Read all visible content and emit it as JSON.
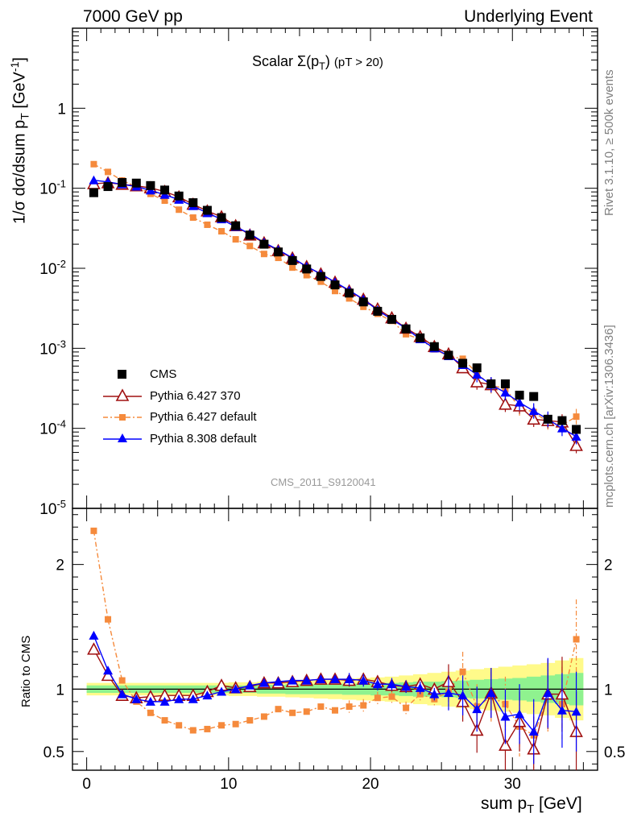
{
  "header": {
    "left": "7000 GeV pp",
    "right": "Underlying Event"
  },
  "side_text": {
    "rivet": "Rivet 3.1.10, ≥ 500k events",
    "url": "mcplots.cern.ch [arXiv:1306.3436]"
  },
  "watermark": "CMS_2011_S9120041",
  "colors": {
    "cms": "#000000",
    "py6_370": "#a01010",
    "py6_default": "#f58a3c",
    "py8": "#0000ff",
    "band_outer": "#fffa8a",
    "band_inner": "#8ff28f"
  },
  "chart_data": [
    {
      "type": "scatter",
      "log_y": true,
      "title": "Scalar Σ(p_T) (pT > 20)",
      "title_parts": {
        "main": "Scalar ",
        "sigma": "Σ(p",
        "sub": "T",
        "close": ")",
        "cut": "(pT > 20)"
      },
      "xlabel": "sum p_T [GeV]",
      "ylabel": "1/σ dσ/dsum p_T [GeV^-1]",
      "ylabel_parts": {
        "main": "1/σ dσ/dsum p",
        "sub": "T",
        "unit": " [GeV",
        "sup": "-1",
        "end": "]"
      },
      "xlim": [
        -1,
        36
      ],
      "ylim": [
        1e-05,
        10
      ],
      "y_tick_labels": [
        "1",
        "10^-1",
        "10^-2",
        "10^-3",
        "10^-4",
        "10^-5"
      ],
      "x": [
        0.5,
        1.5,
        2.5,
        3.5,
        4.5,
        5.5,
        6.5,
        7.5,
        8.5,
        9.5,
        10.5,
        11.5,
        12.5,
        13.5,
        14.5,
        15.5,
        16.5,
        17.5,
        18.5,
        19.5,
        20.5,
        21.5,
        22.5,
        23.5,
        24.5,
        25.5,
        26.5,
        27.5,
        28.5,
        29.5,
        30.5,
        31.5,
        32.5,
        33.5,
        34.5
      ],
      "legend": [
        {
          "name": "CMS"
        },
        {
          "name": "Pythia 6.427 370"
        },
        {
          "name": "Pythia 6.427 default"
        },
        {
          "name": "Pythia 8.308 default"
        }
      ],
      "series": [
        {
          "name": "CMS",
          "values": [
            0.088,
            0.105,
            0.118,
            0.116,
            0.108,
            0.095,
            0.08,
            0.066,
            0.053,
            0.043,
            0.034,
            0.026,
            0.02,
            0.016,
            0.0125,
            0.0098,
            0.0079,
            0.0062,
            0.0049,
            0.0038,
            0.0029,
            0.0023,
            0.00175,
            0.00135,
            0.00105,
            0.00082,
            0.00065,
            0.00057,
            0.00036,
            0.00036,
            0.00026,
            0.00025,
            0.00013,
            0.000125,
            9.7e-05
          ]
        },
        {
          "name": "Pythia 6.427 370",
          "values": [
            0.114,
            0.117,
            0.112,
            0.107,
            0.101,
            0.091,
            0.078,
            0.063,
            0.052,
            0.044,
            0.034,
            0.026,
            0.0208,
            0.0166,
            0.0134,
            0.0105,
            0.0085,
            0.0067,
            0.0052,
            0.0041,
            0.0031,
            0.0024,
            0.00178,
            0.0014,
            0.00105,
            0.00085,
            0.00057,
            0.00038,
            0.00035,
            0.0002,
            0.00019,
            0.00013,
            0.000125,
            0.00012,
            6.1e-05
          ]
        },
        {
          "name": "Pythia 6.427 default",
          "values": [
            0.2,
            0.16,
            0.125,
            0.105,
            0.085,
            0.07,
            0.054,
            0.043,
            0.035,
            0.029,
            0.023,
            0.019,
            0.0151,
            0.0135,
            0.0102,
            0.0082,
            0.0068,
            0.0052,
            0.0042,
            0.0033,
            0.0027,
            0.0022,
            0.0015,
            0.0013,
            0.00097,
            0.0008,
            0.00074,
            0.00049,
            0.00034,
            0.00032,
            0.00018,
            0.00016,
            0.00012,
            0.00011,
            0.00014
          ]
        },
        {
          "name": "Pythia 8.308 default",
          "values": [
            0.126,
            0.12,
            0.112,
            0.105,
            0.094,
            0.083,
            0.072,
            0.06,
            0.049,
            0.041,
            0.033,
            0.027,
            0.021,
            0.017,
            0.0135,
            0.0105,
            0.0085,
            0.0067,
            0.0053,
            0.0041,
            0.003,
            0.0023,
            0.00178,
            0.0013,
            0.001,
            0.0008,
            0.00062,
            0.00047,
            0.00035,
            0.00028,
            0.00021,
            0.000165,
            0.00013,
            0.0001,
            7.9e-05
          ]
        }
      ]
    },
    {
      "type": "scatter",
      "title": "",
      "xlabel": "sum p_T [GeV]",
      "ylabel": "Ratio to CMS",
      "xlim": [
        -1,
        36
      ],
      "ylim": [
        0.35,
        2.45
      ],
      "x_ticks": [
        0,
        10,
        20,
        30
      ],
      "y_ticks": [
        0.5,
        1,
        2
      ],
      "y_tick_labels": [
        "0.5",
        "1",
        "2"
      ],
      "x": [
        0.5,
        1.5,
        2.5,
        3.5,
        4.5,
        5.5,
        6.5,
        7.5,
        8.5,
        9.5,
        10.5,
        11.5,
        12.5,
        13.5,
        14.5,
        15.5,
        16.5,
        17.5,
        18.5,
        19.5,
        20.5,
        21.5,
        22.5,
        23.5,
        24.5,
        25.5,
        26.5,
        27.5,
        28.5,
        29.5,
        30.5,
        31.5,
        32.5,
        33.5,
        34.5
      ],
      "band_inner": [
        0.03,
        0.03,
        0.03,
        0.03,
        0.03,
        0.03,
        0.03,
        0.03,
        0.03,
        0.03,
        0.03,
        0.03,
        0.035,
        0.035,
        0.04,
        0.04,
        0.04,
        0.04,
        0.045,
        0.045,
        0.05,
        0.05,
        0.055,
        0.06,
        0.06,
        0.065,
        0.07,
        0.075,
        0.08,
        0.085,
        0.09,
        0.1,
        0.11,
        0.12,
        0.13
      ],
      "band_outer": [
        0.05,
        0.05,
        0.05,
        0.05,
        0.05,
        0.05,
        0.05,
        0.05,
        0.05,
        0.05,
        0.055,
        0.055,
        0.06,
        0.06,
        0.065,
        0.07,
        0.075,
        0.08,
        0.085,
        0.09,
        0.095,
        0.1,
        0.11,
        0.12,
        0.13,
        0.14,
        0.15,
        0.16,
        0.17,
        0.18,
        0.19,
        0.2,
        0.21,
        0.23,
        0.25
      ],
      "series": [
        {
          "name": "Pythia 6.427 370",
          "values": [
            1.32,
            1.11,
            0.95,
            0.93,
            0.94,
            0.95,
            0.95,
            0.95,
            0.98,
            1.03,
            1.01,
            1.02,
            1.05,
            1.05,
            1.06,
            1.07,
            1.08,
            1.08,
            1.07,
            1.08,
            1.06,
            1.03,
            1.02,
            1.04,
            1.0,
            1.06,
            0.9,
            0.67,
            0.97,
            0.55,
            0.74,
            0.52,
            0.96,
            0.96,
            0.66
          ]
        },
        {
          "name": "Pythia 6.427 default",
          "values": [
            2.27,
            1.56,
            1.07,
            0.9,
            0.81,
            0.75,
            0.71,
            0.67,
            0.68,
            0.71,
            0.72,
            0.75,
            0.78,
            0.84,
            0.81,
            0.82,
            0.86,
            0.83,
            0.86,
            0.87,
            0.93,
            0.94,
            0.85,
            0.96,
            0.92,
            0.98,
            1.14,
            0.86,
            0.94,
            0.88,
            0.7,
            0.63,
            0.94,
            0.88,
            1.4
          ]
        },
        {
          "name": "Pythia 8.308 default",
          "values": [
            1.43,
            1.15,
            0.96,
            0.92,
            0.9,
            0.9,
            0.92,
            0.92,
            0.95,
            0.98,
            1.0,
            1.03,
            1.05,
            1.06,
            1.07,
            1.07,
            1.08,
            1.08,
            1.08,
            1.07,
            1.04,
            1.04,
            1.02,
            1.01,
            0.96,
            0.97,
            0.95,
            0.84,
            0.97,
            0.78,
            0.8,
            0.66,
            0.97,
            0.83,
            0.82
          ]
        }
      ]
    }
  ]
}
